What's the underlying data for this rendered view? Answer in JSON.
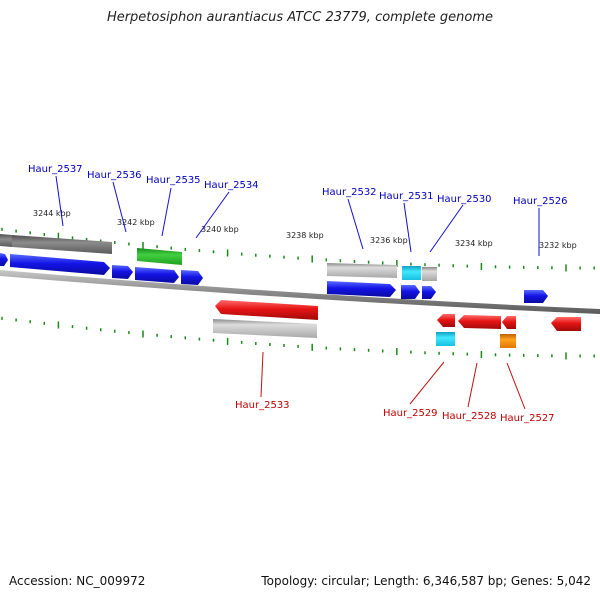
{
  "title": "Herpetosiphon aurantiacus ATCC 23779, complete genome",
  "footer": {
    "accession": "Accession: NC_009972",
    "summary": "Topology: circular; Length: 6,346,587 bp; Genes: 5,042"
  },
  "kbp_ticks": [
    "3244 kbp",
    "3242 kbp",
    "3240 kbp",
    "3238 kbp",
    "3236 kbp",
    "3234 kbp",
    "3232 kbp"
  ],
  "gene_labels_forward": [
    "Haur_2537",
    "Haur_2536",
    "Haur_2535",
    "Haur_2534",
    "Haur_2532",
    "Haur_2531",
    "Haur_2530",
    "Haur_2526"
  ],
  "gene_labels_reverse": [
    "Haur_2533",
    "Haur_2529",
    "Haur_2528",
    "Haur_2527"
  ],
  "colors": {
    "forward_gene": "#1010e0",
    "reverse_gene": "#e01010",
    "grey_feature": "#b0b0b0",
    "dark_grey_feature": "#707070",
    "green_feature": "#30c030",
    "cyan_feature": "#20d0f0",
    "orange_feature": "#f09010",
    "tick": "#1a8a1a",
    "backbone": "#8a8a8a",
    "forward_label": "#0000c0",
    "reverse_label": "#c00000"
  }
}
